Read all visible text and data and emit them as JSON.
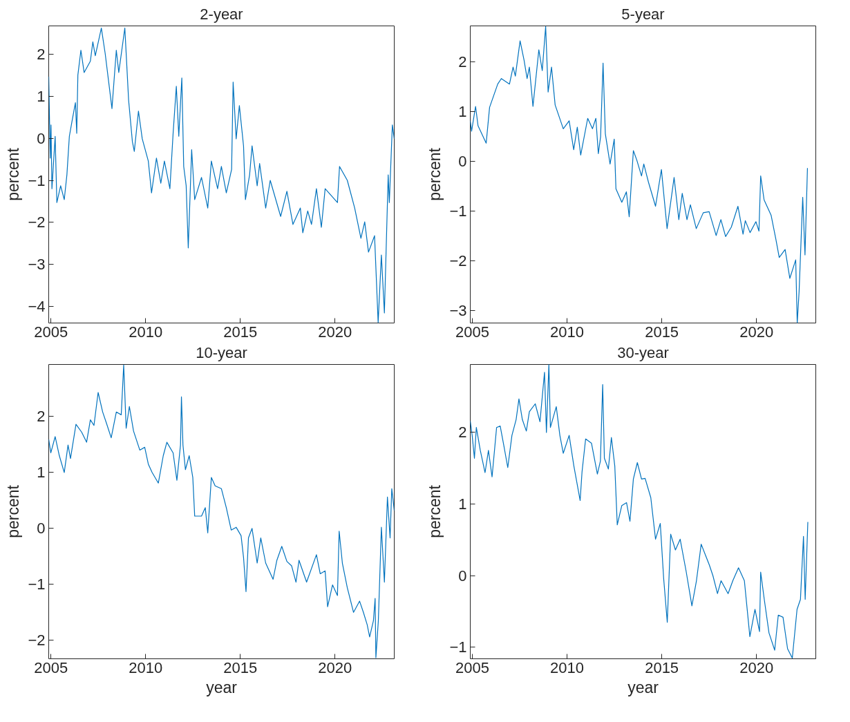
{
  "chart_data": [
    {
      "type": "line",
      "title": "2-year",
      "ylabel": "percent",
      "xlim": [
        2004.88,
        2023.13
      ],
      "xticks": [
        2005,
        2010,
        2015,
        2020
      ],
      "ylim": [
        -4.4,
        2.68
      ],
      "yticks": [
        -4,
        -3,
        -2,
        -1,
        0,
        1,
        2
      ],
      "line_style": "solid",
      "marker": "none",
      "series": [
        {
          "color": "#0072bd",
          "x": [
            2004.88,
            2004.96,
            2005.0,
            2005.05,
            2005.22,
            2005.31,
            2005.51,
            2005.7,
            2005.84,
            2005.97,
            2006.1,
            2006.29,
            2006.36,
            2006.42,
            2006.58,
            2006.75,
            2007.08,
            2007.21,
            2007.34,
            2007.66,
            2007.86,
            2008.22,
            2008.45,
            2008.58,
            2008.9,
            2009.1,
            2009.3,
            2009.4,
            2009.62,
            2009.82,
            2010.14,
            2010.31,
            2010.57,
            2010.8,
            2010.99,
            2011.28,
            2011.45,
            2011.62,
            2011.75,
            2011.91,
            2012.01,
            2012.14,
            2012.25,
            2012.43,
            2012.59,
            2012.95,
            2013.28,
            2013.47,
            2013.8,
            2014.0,
            2014.26,
            2014.54,
            2014.62,
            2014.78,
            2014.95,
            2015.17,
            2015.27,
            2015.49,
            2015.62,
            2015.89,
            2016.02,
            2016.34,
            2016.58,
            2017.13,
            2017.46,
            2017.78,
            2018.17,
            2018.3,
            2018.56,
            2018.76,
            2019.02,
            2019.28,
            2019.48,
            2020.13,
            2020.24,
            2020.65,
            2021.04,
            2021.37,
            2021.57,
            2021.77,
            2022.09,
            2022.28,
            2022.45,
            2022.61,
            2022.81,
            2022.87,
            2023.03,
            2023.13
          ],
          "values": [
            1.47,
            -0.47,
            0.32,
            -1.2,
            0.05,
            -1.53,
            -1.13,
            -1.46,
            -0.87,
            0.05,
            0.38,
            0.85,
            0.12,
            1.51,
            2.1,
            1.57,
            1.84,
            2.3,
            1.97,
            2.63,
            2.03,
            0.71,
            2.1,
            1.57,
            2.63,
            0.91,
            -0.08,
            -0.31,
            0.65,
            -0.01,
            -0.54,
            -1.3,
            -0.47,
            -1.07,
            -0.54,
            -1.2,
            0.12,
            1.24,
            0.05,
            1.44,
            -0.67,
            -1.13,
            -2.61,
            -0.27,
            -1.46,
            -0.93,
            -1.66,
            -0.54,
            -1.2,
            -0.67,
            -1.3,
            -0.74,
            1.34,
            -0.01,
            0.78,
            -0.18,
            -1.46,
            -0.87,
            -0.18,
            -1.13,
            -0.6,
            -1.66,
            -1.0,
            -1.86,
            -1.26,
            -2.05,
            -1.66,
            -2.25,
            -1.73,
            -2.05,
            -1.2,
            -2.12,
            -1.2,
            -1.53,
            -0.67,
            -1.0,
            -1.66,
            -2.38,
            -1.99,
            -2.71,
            -2.32,
            -4.39,
            -2.78,
            -4.16,
            -0.87,
            -1.53,
            0.32,
            -0.01
          ]
        }
      ]
    },
    {
      "type": "line",
      "title": "5-year",
      "ylabel": "percent",
      "xlim": [
        2004.89,
        2023.13
      ],
      "xticks": [
        2005,
        2010,
        2015,
        2020
      ],
      "ylim": [
        -3.25,
        2.73
      ],
      "yticks": [
        -3,
        -2,
        -1,
        0,
        1,
        2
      ],
      "line_style": "solid",
      "marker": "none",
      "series": [
        {
          "color": "#0072bd",
          "x": [
            2004.89,
            2004.96,
            2005.17,
            2005.3,
            2005.73,
            2005.91,
            2006.34,
            2006.53,
            2006.96,
            2007.15,
            2007.27,
            2007.52,
            2007.73,
            2007.89,
            2008.01,
            2008.2,
            2008.51,
            2008.69,
            2008.87,
            2009.0,
            2009.18,
            2009.37,
            2009.8,
            2010.11,
            2010.35,
            2010.54,
            2010.72,
            2011.09,
            2011.34,
            2011.52,
            2011.65,
            2011.77,
            2011.9,
            2012.02,
            2012.27,
            2012.49,
            2012.58,
            2012.89,
            2013.13,
            2013.28,
            2013.5,
            2013.68,
            2013.93,
            2014.05,
            2014.3,
            2014.67,
            2014.98,
            2015.28,
            2015.65,
            2015.9,
            2016.08,
            2016.33,
            2016.51,
            2016.82,
            2017.19,
            2017.5,
            2017.87,
            2018.12,
            2018.37,
            2018.67,
            2019.02,
            2019.29,
            2019.41,
            2019.66,
            2019.97,
            2020.13,
            2020.22,
            2020.4,
            2020.77,
            2021.02,
            2021.2,
            2021.51,
            2021.76,
            2022.07,
            2022.15,
            2022.25,
            2022.44,
            2022.56,
            2022.69
          ],
          "values": [
            0.82,
            0.61,
            1.11,
            0.72,
            0.37,
            1.09,
            1.56,
            1.67,
            1.56,
            1.9,
            1.72,
            2.43,
            2.04,
            1.67,
            1.9,
            1.11,
            2.25,
            1.83,
            2.72,
            1.4,
            1.9,
            1.14,
            0.66,
            0.82,
            0.24,
            0.69,
            0.13,
            0.87,
            0.66,
            0.87,
            0.16,
            0.5,
            1.98,
            0.56,
            -0.05,
            0.45,
            -0.55,
            -0.82,
            -0.61,
            -1.11,
            0.22,
            0.03,
            -0.29,
            -0.05,
            -0.42,
            -0.9,
            -0.16,
            -1.35,
            -0.32,
            -1.17,
            -0.64,
            -1.17,
            -0.87,
            -1.35,
            -1.03,
            -1.01,
            -1.49,
            -1.17,
            -1.51,
            -1.32,
            -0.9,
            -1.46,
            -1.19,
            -1.43,
            -1.21,
            -1.4,
            -0.29,
            -0.77,
            -1.08,
            -1.56,
            -1.93,
            -1.77,
            -2.35,
            -1.98,
            -3.25,
            -2.61,
            -0.72,
            -1.88,
            -0.13
          ]
        }
      ]
    },
    {
      "type": "line",
      "title": "10-year",
      "xlabel": "year",
      "ylabel": "percent",
      "xlim": [
        2004.88,
        2023.13
      ],
      "xticks": [
        2005,
        2010,
        2015,
        2020
      ],
      "ylim": [
        -2.33,
        2.93
      ],
      "yticks": [
        -2,
        -1,
        0,
        1,
        2
      ],
      "line_style": "solid",
      "marker": "none",
      "series": [
        {
          "color": "#0072bd",
          "x": [
            2004.88,
            2004.99,
            2005.22,
            2005.44,
            2005.7,
            2005.9,
            2006.03,
            2006.32,
            2006.62,
            2006.88,
            2007.08,
            2007.27,
            2007.49,
            2007.73,
            2007.92,
            2008.18,
            2008.45,
            2008.71,
            2008.84,
            2008.97,
            2009.14,
            2009.36,
            2009.69,
            2009.95,
            2010.14,
            2010.34,
            2010.67,
            2010.93,
            2011.12,
            2011.45,
            2011.65,
            2011.84,
            2011.89,
            2011.97,
            2012.1,
            2012.3,
            2012.49,
            2012.59,
            2012.95,
            2013.15,
            2013.28,
            2013.47,
            2013.67,
            2014.0,
            2014.26,
            2014.52,
            2014.78,
            2015.04,
            2015.17,
            2015.3,
            2015.43,
            2015.62,
            2015.89,
            2016.08,
            2016.34,
            2016.73,
            2016.93,
            2017.19,
            2017.46,
            2017.71,
            2017.94,
            2018.1,
            2018.5,
            2019.02,
            2019.22,
            2019.48,
            2019.61,
            2019.87,
            2020.13,
            2020.22,
            2020.39,
            2020.65,
            2020.98,
            2021.3,
            2021.5,
            2021.7,
            2021.83,
            2022.03,
            2022.12,
            2022.16,
            2022.29,
            2022.45,
            2022.61,
            2022.77,
            2022.91,
            2023.0,
            2023.13
          ],
          "values": [
            1.59,
            1.35,
            1.64,
            1.3,
            1.0,
            1.49,
            1.25,
            1.86,
            1.72,
            1.54,
            1.94,
            1.84,
            2.43,
            2.08,
            1.89,
            1.62,
            2.08,
            2.03,
            2.92,
            1.79,
            2.18,
            1.74,
            1.4,
            1.45,
            1.15,
            1.0,
            0.81,
            1.3,
            1.54,
            1.35,
            0.86,
            1.49,
            2.35,
            1.49,
            1.05,
            1.3,
            0.91,
            0.22,
            0.22,
            0.37,
            -0.08,
            0.91,
            0.76,
            0.71,
            0.37,
            -0.03,
            0.02,
            -0.13,
            -0.52,
            -1.13,
            -0.17,
            0.0,
            -0.62,
            -0.17,
            -0.62,
            -0.91,
            -0.57,
            -0.32,
            -0.59,
            -0.67,
            -0.96,
            -0.57,
            -0.96,
            -0.47,
            -0.81,
            -0.76,
            -1.4,
            -1.01,
            -1.2,
            -0.05,
            -0.62,
            -1.06,
            -1.5,
            -1.3,
            -1.5,
            -1.72,
            -1.94,
            -1.65,
            -1.25,
            -2.31,
            -1.65,
            0.02,
            -0.96,
            0.56,
            -0.17,
            0.71,
            0.32
          ]
        }
      ]
    },
    {
      "type": "line",
      "title": "30-year",
      "xlabel": "year",
      "ylabel": "percent",
      "xlim": [
        2004.89,
        2023.13
      ],
      "xticks": [
        2005,
        2010,
        2015,
        2020
      ],
      "ylim": [
        -1.16,
        2.95
      ],
      "yticks": [
        -1,
        0,
        1,
        2
      ],
      "line_style": "solid",
      "marker": "none",
      "series": [
        {
          "color": "#0072bd",
          "x": [
            2004.89,
            2004.99,
            2005.11,
            2005.21,
            2005.42,
            2005.67,
            2005.85,
            2006.04,
            2006.28,
            2006.47,
            2006.66,
            2006.87,
            2007.09,
            2007.31,
            2007.46,
            2007.64,
            2007.85,
            2008.01,
            2008.32,
            2008.57,
            2008.81,
            2008.91,
            2009.04,
            2009.12,
            2009.43,
            2009.62,
            2009.8,
            2010.11,
            2010.36,
            2010.69,
            2010.79,
            2010.98,
            2011.29,
            2011.6,
            2011.76,
            2011.88,
            2011.97,
            2012.18,
            2012.34,
            2012.52,
            2012.65,
            2012.89,
            2013.14,
            2013.32,
            2013.5,
            2013.71,
            2013.93,
            2014.12,
            2014.42,
            2014.67,
            2014.92,
            2015.1,
            2015.29,
            2015.47,
            2015.72,
            2015.97,
            2016.28,
            2016.59,
            2016.83,
            2017.08,
            2017.51,
            2017.7,
            2017.94,
            2018.13,
            2018.5,
            2018.75,
            2019.05,
            2019.36,
            2019.65,
            2019.92,
            2020.16,
            2020.22,
            2020.41,
            2020.66,
            2020.96,
            2021.15,
            2021.4,
            2021.64,
            2021.89,
            2022.14,
            2022.32,
            2022.48,
            2022.57,
            2022.71
          ],
          "values": [
            2.16,
            1.96,
            1.64,
            2.07,
            1.75,
            1.44,
            1.75,
            1.38,
            2.07,
            2.09,
            1.82,
            1.51,
            1.96,
            2.18,
            2.47,
            2.18,
            2.02,
            2.29,
            2.4,
            2.15,
            2.84,
            2.0,
            2.95,
            2.07,
            2.36,
            1.96,
            1.71,
            1.96,
            1.53,
            1.05,
            1.45,
            1.91,
            1.85,
            1.42,
            1.6,
            2.67,
            1.64,
            1.49,
            1.93,
            1.53,
            0.71,
            0.98,
            1.02,
            0.76,
            1.35,
            1.58,
            1.35,
            1.36,
            1.09,
            0.51,
            0.73,
            -0.04,
            -0.65,
            0.58,
            0.36,
            0.51,
            0.07,
            -0.42,
            -0.07,
            0.44,
            0.15,
            0.0,
            -0.25,
            -0.07,
            -0.25,
            -0.07,
            0.11,
            -0.07,
            -0.85,
            -0.47,
            -0.78,
            0.05,
            -0.33,
            -0.8,
            -1.04,
            -0.55,
            -0.58,
            -1.02,
            -1.15,
            -0.47,
            -0.33,
            0.55,
            -0.33,
            0.75
          ]
        }
      ]
    }
  ]
}
